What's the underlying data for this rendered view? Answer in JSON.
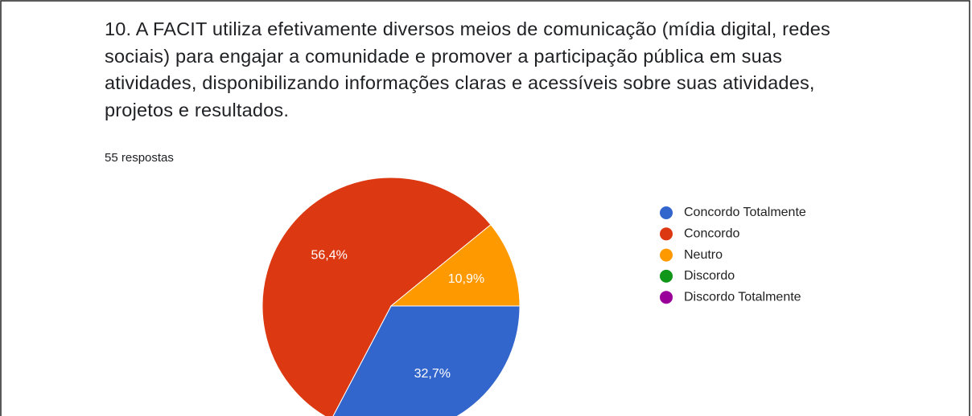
{
  "chart_data": {
    "type": "pie",
    "title": "10. A FACIT utiliza efetivamente diversos meios de comunicação (mídia digital, redes sociais) para engajar a comunidade e promover a participação pública em suas atividades, disponibilizando informações claras e acessíveis sobre suas atividades, projetos e resultados.",
    "subtitle": "55 respostas",
    "categories": [
      "Concordo Totalmente",
      "Concordo",
      "Neutro",
      "Discordo",
      "Discordo Totalmente"
    ],
    "values": [
      32.7,
      56.4,
      10.9,
      0,
      0
    ],
    "value_labels": [
      "32,7%",
      "56,4%",
      "10,9%",
      null,
      null
    ],
    "colors": [
      "#3366cc",
      "#dc3912",
      "#ff9900",
      "#109618",
      "#990099"
    ],
    "legend": "right"
  }
}
